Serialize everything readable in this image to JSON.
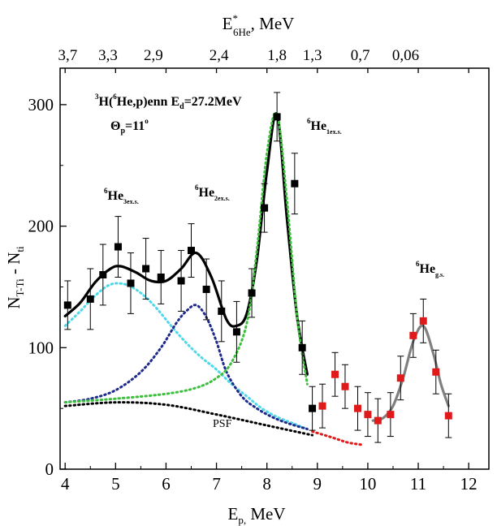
{
  "chart_data": {
    "type": "scatter",
    "title": "",
    "top_axis": {
      "label_main": "E",
      "label_sup": "*",
      "label_sub": "6He",
      "label_suffix": ", MeV",
      "ticks": [
        {
          "label": "3,7",
          "ep": 4.05
        },
        {
          "label": "3,3",
          "ep": 4.85
        },
        {
          "label": "2,9",
          "ep": 5.75
        },
        {
          "label": "2,4",
          "ep": 7.05
        },
        {
          "label": "1,8",
          "ep": 8.2
        },
        {
          "label": "1,3",
          "ep": 8.9
        },
        {
          "label": "0,7",
          "ep": 9.85
        },
        {
          "label": "0,06",
          "ep": 10.75
        }
      ]
    },
    "xlabel_main": "E",
    "xlabel_sub": "p,",
    "xlabel_suffix": " MeV",
    "ylabel_main": "N",
    "ylabel_sub1": "T-Ti",
    "ylabel_mid": " - N",
    "ylabel_sub2": "ti",
    "xlim": [
      3.9,
      12.4
    ],
    "ylim": [
      0,
      330
    ],
    "x_ticks": [
      4,
      5,
      6,
      7,
      8,
      9,
      10,
      11,
      12
    ],
    "y_ticks": [
      0,
      100,
      200,
      300
    ],
    "annotations": {
      "reaction_pre": "H(",
      "reaction_mid": "He,p)enn E",
      "reaction_sub": "d",
      "reaction_post": "=27.2MeV",
      "theta": "=11",
      "theta_sub": "p",
      "peak_main": "He",
      "peak_sub_1": "1ex.s.",
      "peak_sub_2": "2ex.s.",
      "peak_sub_3": "3ex.s.",
      "peak_sub_gs": "g.s.",
      "psf": "PSF",
      "sup_3": "3",
      "sup_6": "6",
      "sup_o": "o"
    },
    "series": [
      {
        "kind": "points",
        "color": "#000000",
        "points": [
          [
            4.05,
            135,
            20
          ],
          [
            4.5,
            140,
            25
          ],
          [
            4.75,
            160,
            25
          ],
          [
            5.05,
            183,
            25
          ],
          [
            5.3,
            153,
            25
          ],
          [
            5.6,
            165,
            25
          ],
          [
            5.9,
            158,
            22
          ],
          [
            6.3,
            155,
            25
          ],
          [
            6.5,
            180,
            22
          ],
          [
            6.8,
            148,
            25
          ],
          [
            7.1,
            130,
            25
          ],
          [
            7.4,
            113,
            25
          ],
          [
            7.7,
            145,
            20
          ],
          [
            7.95,
            215,
            20
          ],
          [
            8.2,
            290,
            20
          ],
          [
            8.55,
            235,
            25
          ],
          [
            8.7,
            100,
            22
          ],
          [
            8.9,
            50,
            18
          ]
        ]
      },
      {
        "kind": "points",
        "color": "#e01a1a",
        "points": [
          [
            9.1,
            52,
            18
          ],
          [
            9.35,
            78,
            18
          ],
          [
            9.55,
            68,
            18
          ],
          [
            9.8,
            50,
            18
          ],
          [
            10.0,
            45,
            18
          ],
          [
            10.2,
            40,
            18
          ],
          [
            10.45,
            45,
            18
          ],
          [
            10.65,
            75,
            18
          ],
          [
            10.9,
            110,
            18
          ],
          [
            11.1,
            122,
            18
          ],
          [
            11.35,
            80,
            18
          ],
          [
            11.6,
            44,
            18
          ]
        ]
      },
      {
        "kind": "curve",
        "color": "#000000",
        "style": "solid",
        "x": [
          4.0,
          4.3,
          4.6,
          4.9,
          5.1,
          5.4,
          5.7,
          6.0,
          6.3,
          6.6,
          6.9,
          7.2,
          7.4,
          7.6,
          7.8,
          8.0,
          8.2,
          8.4,
          8.6,
          8.8
        ],
        "y": [
          126,
          137,
          154,
          165,
          167,
          162,
          155,
          155,
          165,
          178,
          158,
          123,
          118,
          128,
          172,
          245,
          292,
          205,
          125,
          78
        ]
      },
      {
        "kind": "curve",
        "color": "#4fd8e8",
        "style": "dotted",
        "x": [
          4.0,
          4.3,
          4.6,
          4.9,
          5.2,
          5.5,
          5.8,
          6.1,
          6.4,
          6.7,
          7.0,
          7.3,
          7.6,
          7.9,
          8.2,
          8.5,
          8.8
        ],
        "y": [
          118,
          130,
          143,
          152,
          152,
          145,
          133,
          118,
          104,
          92,
          82,
          70,
          60,
          50,
          43,
          38,
          33
        ]
      },
      {
        "kind": "curve",
        "color": "#1e2a8c",
        "style": "dotted",
        "x": [
          4.0,
          4.5,
          5.0,
          5.5,
          5.9,
          6.2,
          6.4,
          6.6,
          6.8,
          7.0,
          7.2,
          7.5,
          7.8,
          8.1,
          8.4,
          8.8
        ],
        "y": [
          55,
          58,
          65,
          80,
          100,
          120,
          130,
          135,
          125,
          105,
          80,
          60,
          50,
          43,
          38,
          33
        ]
      },
      {
        "kind": "curve",
        "color": "#3cbf3c",
        "style": "dotted",
        "x": [
          4.0,
          5.0,
          6.0,
          6.6,
          7.0,
          7.3,
          7.6,
          7.8,
          8.0,
          8.2,
          8.4,
          8.6,
          8.8
        ],
        "y": [
          55,
          58,
          62,
          67,
          75,
          88,
          120,
          180,
          260,
          292,
          220,
          125,
          70
        ]
      },
      {
        "kind": "curve",
        "color": "#000000",
        "style": "dotted",
        "x": [
          4.0,
          5.0,
          6.0,
          7.0,
          8.0,
          8.9
        ],
        "y": [
          52,
          55,
          53,
          45,
          36,
          28
        ]
      },
      {
        "kind": "curve",
        "color": "#e01a1a",
        "style": "dotted",
        "x": [
          8.9,
          9.3,
          9.6,
          9.9
        ],
        "y": [
          31,
          26,
          22,
          20
        ]
      },
      {
        "kind": "curve",
        "color": "#808080",
        "style": "solid",
        "x": [
          10.1,
          10.3,
          10.5,
          10.7,
          10.9,
          11.1,
          11.3,
          11.45,
          11.6
        ],
        "y": [
          40,
          42,
          52,
          75,
          105,
          118,
          95,
          70,
          52
        ]
      }
    ]
  }
}
